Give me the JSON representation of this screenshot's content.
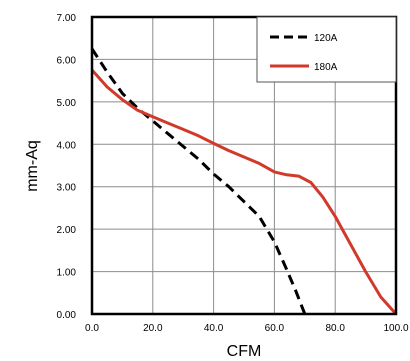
{
  "chart_data": {
    "type": "line",
    "title": "",
    "xlabel": "CFM",
    "ylabel": "mm-Aq",
    "xlim": [
      0,
      100
    ],
    "ylim": [
      0,
      7
    ],
    "x_ticks": [
      "0.0",
      "20.0",
      "40.0",
      "60.0",
      "80.0",
      "100.0"
    ],
    "y_ticks": [
      "0.00",
      "1.00",
      "2.00",
      "3.00",
      "4.00",
      "5.00",
      "6.00",
      "7.00"
    ],
    "grid": true,
    "legend_position": "top-right",
    "series": [
      {
        "name": "120A",
        "color": "#000000",
        "style": "dashed",
        "x": [
          0,
          5,
          10,
          15,
          20,
          25,
          30,
          35,
          40,
          45,
          50,
          55,
          60,
          64,
          67,
          70
        ],
        "y": [
          6.25,
          5.7,
          5.2,
          4.85,
          4.55,
          4.25,
          3.95,
          3.65,
          3.3,
          3.0,
          2.65,
          2.3,
          1.7,
          1.05,
          0.55,
          0.0
        ]
      },
      {
        "name": "180A",
        "color": "#d1392b",
        "style": "solid",
        "x": [
          0,
          5,
          10,
          15,
          20,
          25,
          30,
          35,
          40,
          45,
          50,
          55,
          60,
          64,
          68,
          72,
          76,
          80,
          85,
          90,
          95,
          100
        ],
        "y": [
          5.75,
          5.35,
          5.05,
          4.8,
          4.65,
          4.5,
          4.35,
          4.2,
          4.02,
          3.85,
          3.7,
          3.55,
          3.35,
          3.28,
          3.25,
          3.1,
          2.75,
          2.3,
          1.65,
          1.0,
          0.4,
          0.0
        ]
      }
    ]
  }
}
